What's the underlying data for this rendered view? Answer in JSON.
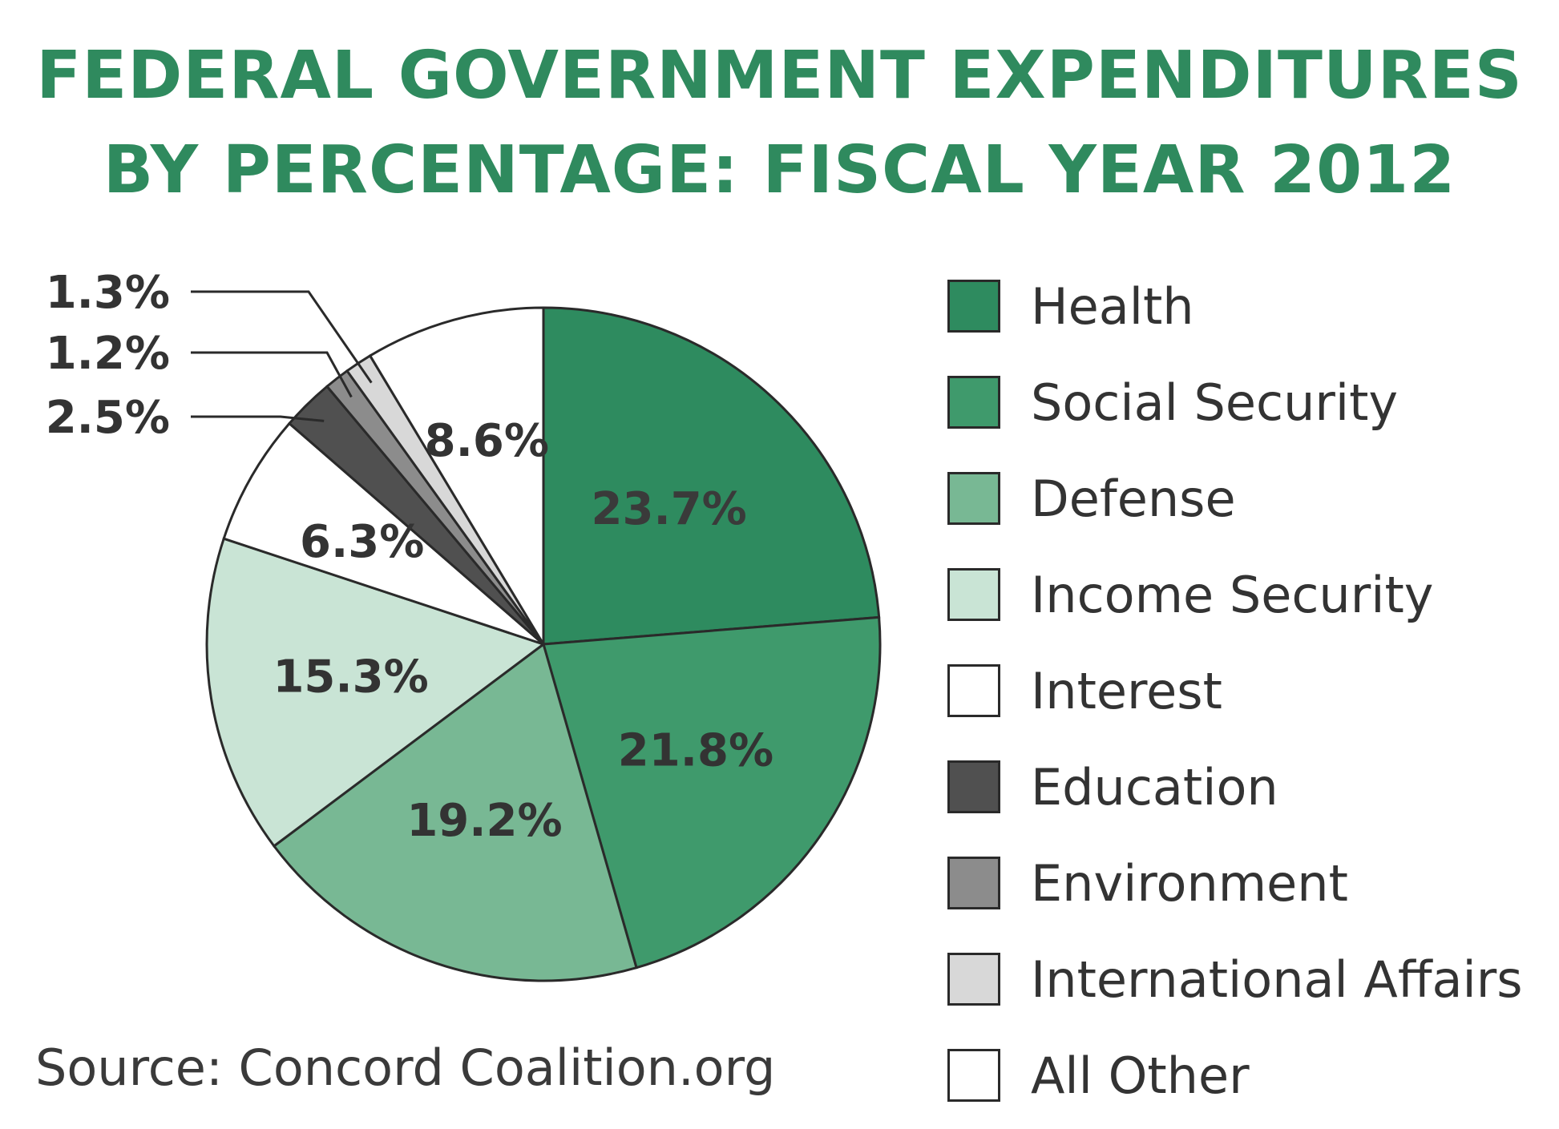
{
  "chart_data": {
    "type": "pie",
    "title_lines": [
      "FEDERAL GOVERNMENT EXPENDITURES",
      "BY PERCENTAGE: FISCAL YEAR 2012"
    ],
    "slices": [
      {
        "name": "Health",
        "value": 23.7,
        "label": "23.7%",
        "color": "#2e8b5f"
      },
      {
        "name": "Social Security",
        "value": 21.8,
        "label": "21.8%",
        "color": "#3f9a6c"
      },
      {
        "name": "Defense",
        "value": 19.2,
        "label": "19.2%",
        "color": "#78b894"
      },
      {
        "name": "Income Security",
        "value": 15.3,
        "label": "15.3%",
        "color": "#c9e4d5"
      },
      {
        "name": "Interest",
        "value": 6.3,
        "label": "6.3%",
        "color": "#ffffff"
      },
      {
        "name": "Education",
        "value": 2.5,
        "label": "2.5%",
        "color": "#505050"
      },
      {
        "name": "Environment",
        "value": 1.2,
        "label": "1.2%",
        "color": "#8c8c8c"
      },
      {
        "name": "International Affairs",
        "value": 1.3,
        "label": "1.3%",
        "color": "#d8d8d8"
      },
      {
        "name": "All Other",
        "value": 8.6,
        "label": "8.6%",
        "color": "#ffffff"
      }
    ],
    "legend_position": "right",
    "source": "Source: Concord Coalition.org"
  }
}
